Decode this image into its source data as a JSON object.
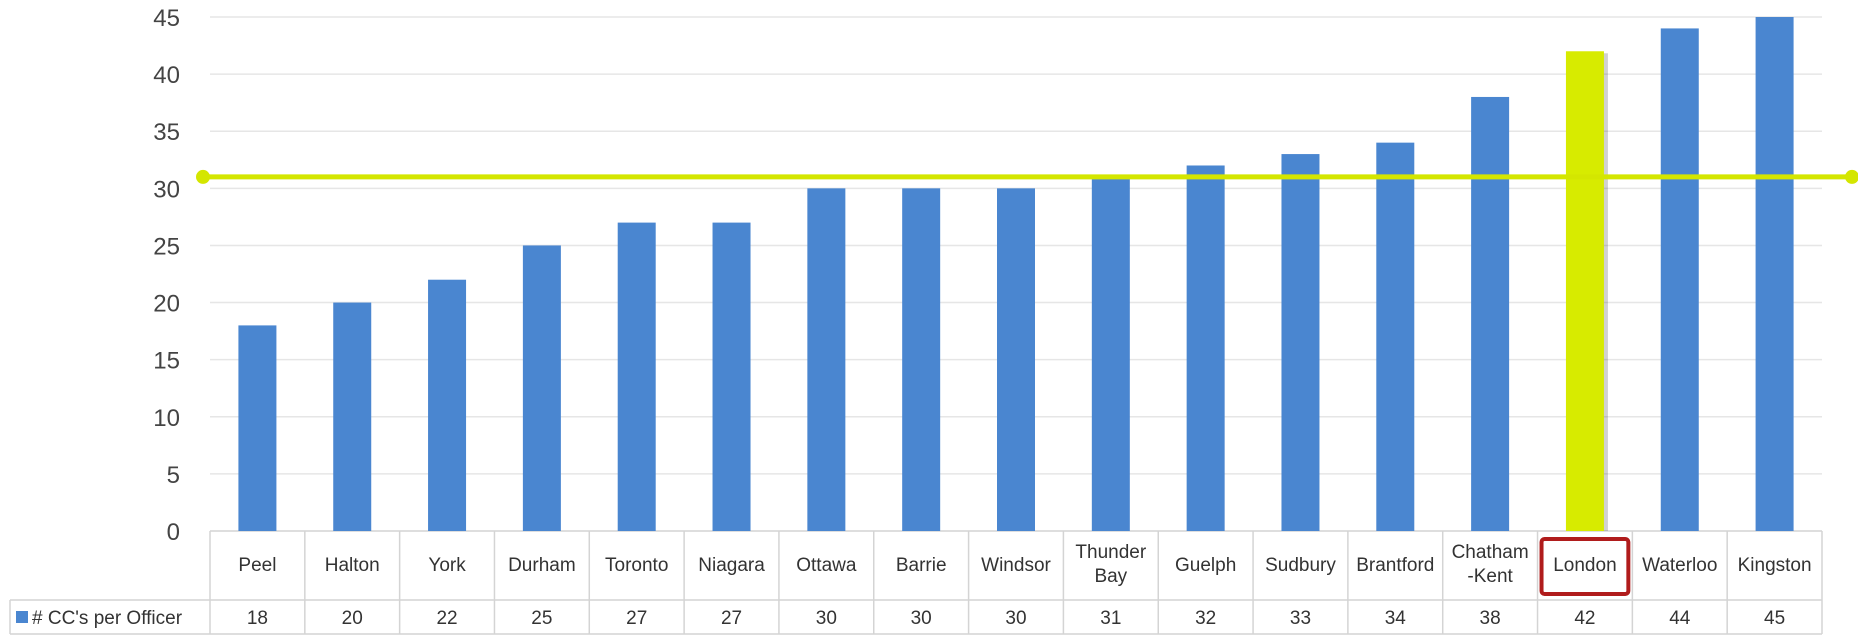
{
  "chart_data": {
    "type": "bar",
    "categories": [
      [
        "Peel"
      ],
      [
        "Halton"
      ],
      [
        "York"
      ],
      [
        "Durham"
      ],
      [
        "Toronto"
      ],
      [
        "Niagara"
      ],
      [
        "Ottawa"
      ],
      [
        "Barrie"
      ],
      [
        "Windsor"
      ],
      [
        "Thunder",
        "Bay"
      ],
      [
        "Guelph"
      ],
      [
        "Sudbury"
      ],
      [
        "Brantford"
      ],
      [
        "Chatham",
        "-Kent"
      ],
      [
        "London"
      ],
      [
        "Waterloo"
      ],
      [
        "Kingston"
      ]
    ],
    "series": [
      {
        "name": "# CC's per Officer",
        "values": [
          18,
          20,
          22,
          25,
          27,
          27,
          30,
          30,
          30,
          31,
          32,
          33,
          34,
          38,
          42,
          44,
          45
        ]
      }
    ],
    "reference_line": {
      "value": 31,
      "color": "#d4e600"
    },
    "highlight": {
      "category": "London",
      "bar_color": "#d7eb00",
      "box_color": "#b01c1c"
    },
    "ylim": [
      0,
      45
    ],
    "yticks": [
      0,
      5,
      10,
      15,
      20,
      25,
      30,
      35,
      40,
      45
    ],
    "grid": true,
    "legend": "data-table",
    "colors": {
      "bar": "#4a86d0",
      "gridline": "#e6e6e6",
      "table_border": "#d4d4d4"
    }
  }
}
